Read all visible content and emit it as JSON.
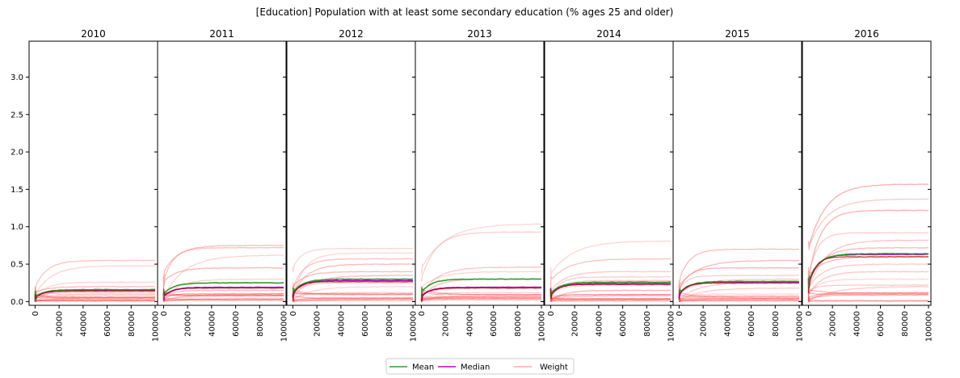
{
  "chart_data": {
    "type": "line",
    "title": "[Education] Population with at least some secondary education (% ages 25 and older)",
    "panels": [
      "2010",
      "2011",
      "2012",
      "2013",
      "2014",
      "2015",
      "2016"
    ],
    "x_ticks": [
      0,
      20000,
      40000,
      60000,
      80000,
      100000
    ],
    "y_ticks": [
      "0.0",
      "0.5",
      "1.0",
      "1.5",
      "2.0",
      "2.5",
      "3.0"
    ],
    "xlim": [
      -5000,
      102000
    ],
    "ylim": [
      -0.05,
      3.48
    ],
    "legend": {
      "placement": "bottom-center",
      "entries": [
        {
          "name": "Mean",
          "color": "#2ca02c"
        },
        {
          "name": "Median",
          "color": "#c000c0"
        },
        {
          "name": "Weight",
          "color": "#ffaaaa"
        }
      ]
    },
    "series_data": {
      "2010": {
        "mean": 0.16,
        "median": 0.15,
        "weights": [
          0.55,
          0.48,
          0.26,
          0.2,
          0.14,
          0.12,
          0.1,
          0.08,
          0.05,
          0.04,
          0.03
        ]
      },
      "2011": {
        "mean": 0.25,
        "median": 0.19,
        "weights": [
          0.75,
          0.72,
          0.62,
          0.45,
          0.3,
          0.25,
          0.15,
          0.1,
          0.07,
          0.04,
          0.02
        ]
      },
      "2012": {
        "mean": 0.3,
        "median": 0.28,
        "weights": [
          0.71,
          0.65,
          0.57,
          0.5,
          0.4,
          0.35,
          0.3,
          0.25,
          0.2,
          0.12,
          0.05,
          0.03
        ]
      },
      "2013": {
        "mean": 0.3,
        "median": 0.19,
        "weights": [
          1.04,
          0.93,
          0.46,
          0.4,
          0.3,
          0.2,
          0.12,
          0.08,
          0.05,
          0.02
        ]
      },
      "2014": {
        "mean": 0.26,
        "median": 0.24,
        "weights": [
          0.81,
          0.57,
          0.4,
          0.33,
          0.28,
          0.22,
          0.15,
          0.08,
          0.04,
          0.02
        ]
      },
      "2015": {
        "mean": 0.27,
        "median": 0.26,
        "weights": [
          0.7,
          0.55,
          0.45,
          0.35,
          0.3,
          0.25,
          0.18,
          0.1,
          0.07,
          0.03
        ]
      },
      "2016": {
        "mean": 0.64,
        "median": 0.63,
        "weights": [
          1.57,
          1.37,
          1.22,
          0.92,
          0.82,
          0.72,
          0.6,
          0.5,
          0.4,
          0.3,
          0.22,
          0.2,
          0.12
        ]
      }
    }
  }
}
